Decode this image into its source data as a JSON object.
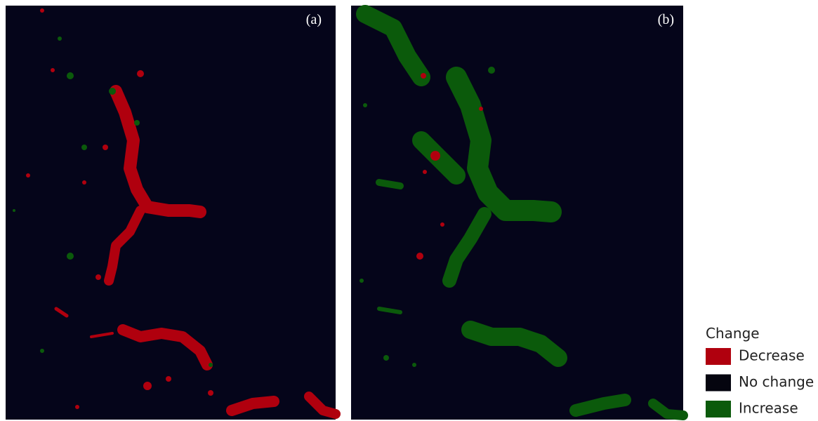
{
  "panels": [
    {
      "label": "(a)"
    },
    {
      "label": "(b)"
    }
  ],
  "legend": {
    "title": "Change",
    "items": [
      {
        "label": "Decrease",
        "color": "#b0000e"
      },
      {
        "label": "No change",
        "color": "#05050f"
      },
      {
        "label": "Increase",
        "color": "#0b5a0b"
      }
    ]
  }
}
